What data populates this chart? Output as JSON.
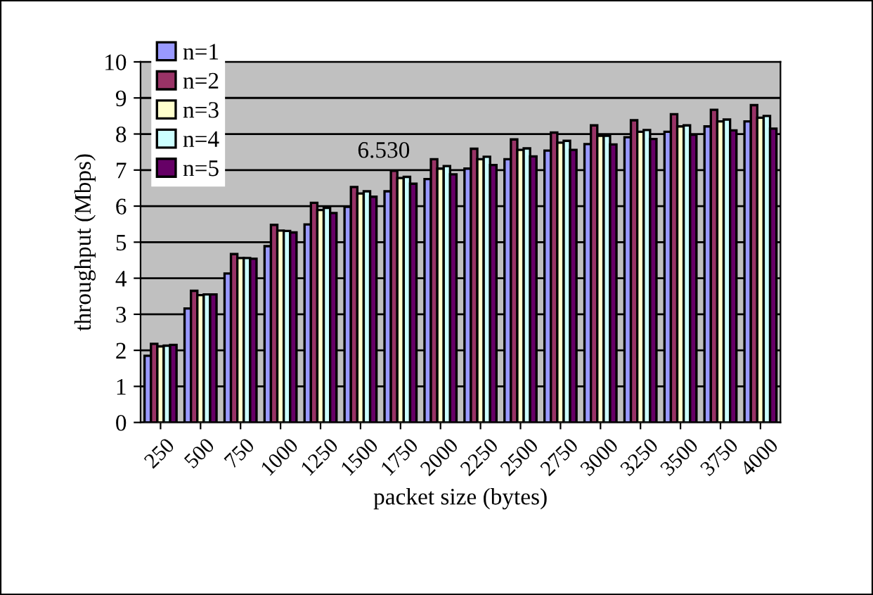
{
  "chart_data": {
    "type": "bar",
    "xlabel": "packet size (bytes)",
    "ylabel": "throughput (Mbps)",
    "categories": [
      "250",
      "500",
      "750",
      "1000",
      "1250",
      "1500",
      "1750",
      "2000",
      "2250",
      "2500",
      "2750",
      "3000",
      "3250",
      "3500",
      "3750",
      "4000"
    ],
    "series": [
      {
        "name": "n=1",
        "color": "#9999ff",
        "values": [
          1.85,
          3.16,
          4.13,
          4.89,
          5.49,
          5.98,
          6.41,
          6.75,
          7.04,
          7.3,
          7.54,
          7.72,
          7.91,
          8.06,
          8.21,
          8.35
        ]
      },
      {
        "name": "n=2",
        "color": "#993366",
        "values": [
          2.18,
          3.65,
          4.67,
          5.48,
          6.09,
          6.53,
          6.98,
          7.3,
          7.59,
          7.85,
          8.04,
          8.24,
          8.38,
          8.55,
          8.67,
          8.8
        ]
      },
      {
        "name": "n=3",
        "color": "#ffffcc",
        "values": [
          2.11,
          3.53,
          4.56,
          5.32,
          5.89,
          6.35,
          6.78,
          7.04,
          7.3,
          7.56,
          7.76,
          7.95,
          8.06,
          8.21,
          8.35,
          8.45
        ]
      },
      {
        "name": "n=4",
        "color": "#ccffff",
        "values": [
          2.13,
          3.55,
          4.56,
          5.31,
          5.95,
          6.41,
          6.81,
          7.11,
          7.37,
          7.6,
          7.81,
          7.95,
          8.11,
          8.24,
          8.4,
          8.5
        ]
      },
      {
        "name": "n=5",
        "color": "#660066",
        "values": [
          2.15,
          3.55,
          4.54,
          5.27,
          5.81,
          6.26,
          6.62,
          6.88,
          7.14,
          7.38,
          7.56,
          7.71,
          7.86,
          7.98,
          8.1,
          8.15
        ]
      }
    ],
    "annotations": [
      "6.530"
    ],
    "ylim": [
      0,
      10
    ],
    "yticks": [
      0,
      1,
      2,
      3,
      4,
      5,
      6,
      7,
      8,
      9,
      10
    ],
    "grid": "y",
    "legend": "top left"
  }
}
